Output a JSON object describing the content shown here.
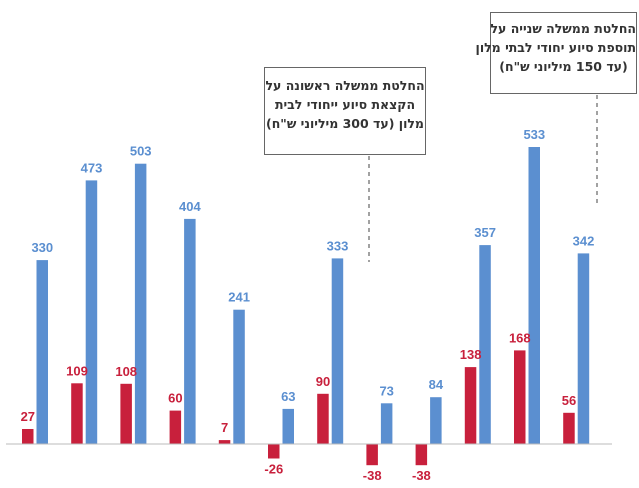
{
  "chart_data": {
    "type": "bar",
    "title": "",
    "xlabel": "",
    "ylabel": "",
    "grid": false,
    "legend": "none",
    "categories": [
      "",
      "",
      "",
      "",
      "",
      "",
      "",
      "",
      "",
      "",
      "",
      ""
    ],
    "series": [
      {
        "color": "#c8203c",
        "values": [
          27,
          109,
          108,
          60,
          7,
          -26,
          90,
          -38,
          -38,
          138,
          168,
          56
        ]
      },
      {
        "color": "#5b8fd0",
        "values": [
          330,
          473,
          503,
          404,
          241,
          63,
          333,
          73,
          84,
          357,
          533,
          342
        ]
      }
    ],
    "ylim": [
      -60,
      560
    ],
    "annotations": [
      {
        "id": "note-1",
        "anchor_category_index": 7,
        "lines": [
          "החלטת ממשלה ראשונה על",
          "הקצאת סיוע ייחודי לבית",
          "מלון (עד 300 מיליוני ש\"ח)"
        ]
      },
      {
        "id": "note-2",
        "anchor_category_index": 11,
        "lines": [
          "החלטת ממשלה שנייה על",
          "תוספת סיוע יחודי לבתי מלון",
          "(עד 150 מיליוני ש\"ח)"
        ]
      }
    ]
  },
  "colors": {
    "red_series": "#c8203c",
    "blue_series": "#5b8fd0",
    "axis": "#bbbbbb",
    "annotation_border": "#666666"
  }
}
